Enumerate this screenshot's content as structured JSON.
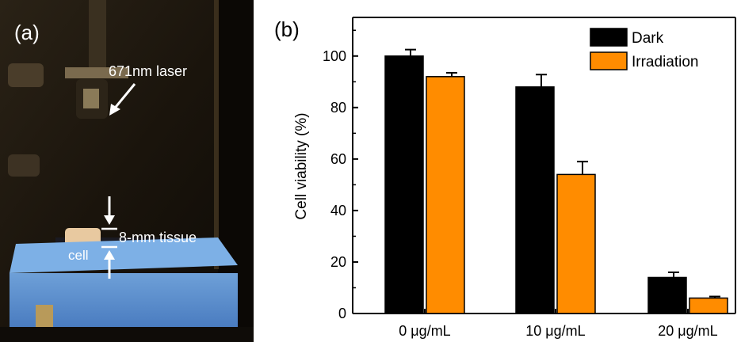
{
  "panel_a": {
    "label": "(a)",
    "laser_label": "671nm laser",
    "tissue_label": "8-mm tissue",
    "cell_label": "cell"
  },
  "panel_b": {
    "label": "(b)"
  },
  "chart_data": {
    "type": "bar",
    "categories": [
      "0 μg/mL",
      "10 μg/mL",
      "20 μg/mL"
    ],
    "series": [
      {
        "name": "Dark",
        "color": "#000000",
        "values": [
          100,
          88,
          14
        ],
        "errors": [
          2.5,
          4.8,
          2.0
        ]
      },
      {
        "name": "Irradiation",
        "color": "#ff8c00",
        "values": [
          92,
          54,
          6
        ],
        "errors": [
          1.5,
          5.0,
          0.6
        ]
      }
    ],
    "xlabel": "",
    "ylabel": "Cell viability (%)",
    "ylim": [
      0,
      115
    ],
    "yticks": [
      0,
      20,
      40,
      60,
      80,
      100
    ],
    "legend_position": "top-right",
    "grid": false
  }
}
